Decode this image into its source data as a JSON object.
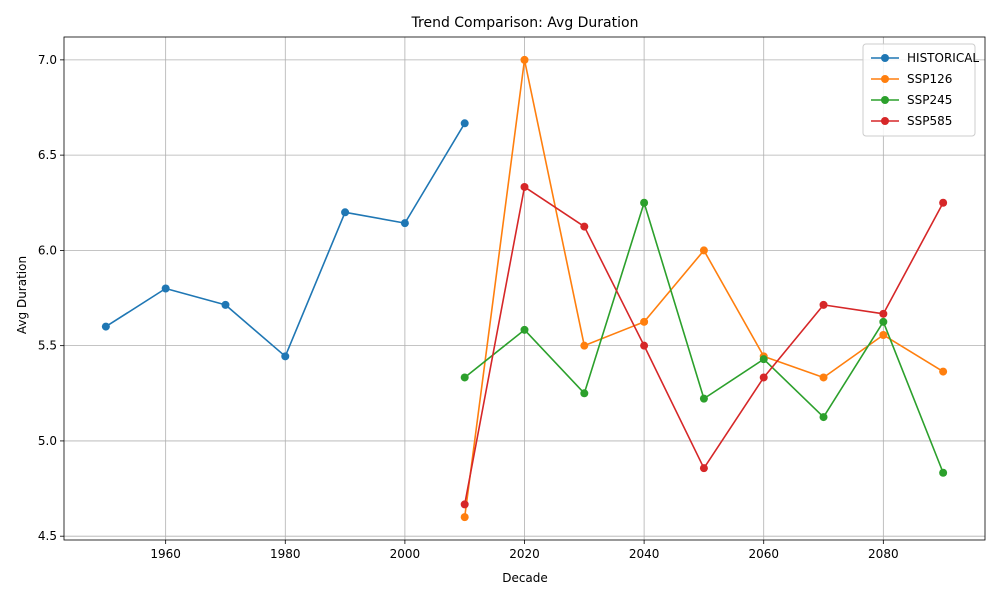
{
  "chart_data": {
    "type": "line",
    "title": "Trend Comparison: Avg Duration",
    "xlabel": "Decade",
    "ylabel": "Avg Duration",
    "xlim": [
      1943,
      2097
    ],
    "ylim": [
      4.48,
      7.12
    ],
    "xticks": [
      1960,
      1980,
      2000,
      2020,
      2040,
      2060,
      2080
    ],
    "yticks": [
      4.5,
      5.0,
      5.5,
      6.0,
      6.5,
      7.0
    ],
    "ytick_labels": [
      "4.5",
      "5.0",
      "5.5",
      "6.0",
      "6.5",
      "7.0"
    ],
    "grid": true,
    "legend_position": "top-right",
    "series": [
      {
        "name": "HISTORICAL",
        "color": "#1f77b4",
        "x": [
          1950,
          1960,
          1970,
          1980,
          1990,
          2000,
          2010
        ],
        "y": [
          5.6,
          5.8,
          5.714,
          5.444,
          6.2,
          6.143,
          6.667
        ]
      },
      {
        "name": "SSP126",
        "color": "#ff7f0e",
        "x": [
          2010,
          2020,
          2030,
          2040,
          2050,
          2060,
          2070,
          2080,
          2090
        ],
        "y": [
          4.6,
          7.0,
          5.5,
          5.625,
          6.0,
          5.444,
          5.333,
          5.556,
          5.364
        ]
      },
      {
        "name": "SSP245",
        "color": "#2ca02c",
        "x": [
          2010,
          2020,
          2030,
          2040,
          2050,
          2060,
          2070,
          2080,
          2090
        ],
        "y": [
          5.333,
          5.583,
          5.25,
          6.25,
          5.222,
          5.429,
          5.125,
          5.625,
          4.833
        ]
      },
      {
        "name": "SSP585",
        "color": "#d62728",
        "x": [
          2010,
          2020,
          2030,
          2040,
          2050,
          2060,
          2070,
          2080,
          2090
        ],
        "y": [
          4.667,
          6.333,
          6.125,
          5.5,
          4.857,
          5.333,
          5.714,
          5.667,
          6.25
        ]
      }
    ]
  }
}
